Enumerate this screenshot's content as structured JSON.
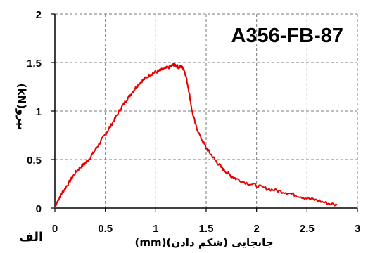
{
  "panel_label": "الف",
  "chart_data": {
    "type": "line",
    "title": "",
    "annotation": "A356-FB-87",
    "xlabel": "جابجایی (شکم دادن)(mm)",
    "ylabel": "نیرو(kN)",
    "xlim": [
      0,
      3
    ],
    "ylim": [
      0,
      2
    ],
    "xticks": [
      0,
      0.5,
      1,
      1.5,
      2,
      2.5,
      3
    ],
    "xtick_labels": [
      "0",
      "0.5",
      "1",
      "1.5",
      "2",
      "2.5",
      "3"
    ],
    "yticks": [
      0,
      0.5,
      1,
      1.5,
      2
    ],
    "ytick_labels": [
      "0",
      "0.5",
      "1",
      "1.5",
      "2"
    ],
    "grid": true,
    "legend": "none",
    "line_color": "#e60000",
    "series": [
      {
        "x": [
          0,
          0.03,
          0.06,
          0.1,
          0.15,
          0.2,
          0.25,
          0.3,
          0.35,
          0.4,
          0.45,
          0.5,
          0.55,
          0.6,
          0.65,
          0.7,
          0.75,
          0.8,
          0.85,
          0.9,
          0.95,
          1.0,
          1.05,
          1.1,
          1.15,
          1.18,
          1.2,
          1.23,
          1.25,
          1.28,
          1.3,
          1.33,
          1.36,
          1.4,
          1.45,
          1.5,
          1.55,
          1.6,
          1.65,
          1.7,
          1.75,
          1.8,
          1.9,
          2.0,
          2.1,
          2.2,
          2.3,
          2.4,
          2.5,
          2.6,
          2.7,
          2.8
        ],
        "y": [
          0,
          0.08,
          0.14,
          0.2,
          0.28,
          0.36,
          0.42,
          0.46,
          0.52,
          0.6,
          0.68,
          0.76,
          0.84,
          0.93,
          1.02,
          1.1,
          1.17,
          1.24,
          1.3,
          1.34,
          1.38,
          1.4,
          1.42,
          1.44,
          1.46,
          1.48,
          1.47,
          1.45,
          1.46,
          1.43,
          1.36,
          1.2,
          1.0,
          0.84,
          0.72,
          0.62,
          0.55,
          0.48,
          0.42,
          0.37,
          0.33,
          0.3,
          0.26,
          0.23,
          0.2,
          0.18,
          0.16,
          0.13,
          0.1,
          0.08,
          0.05,
          0.03
        ]
      }
    ]
  }
}
